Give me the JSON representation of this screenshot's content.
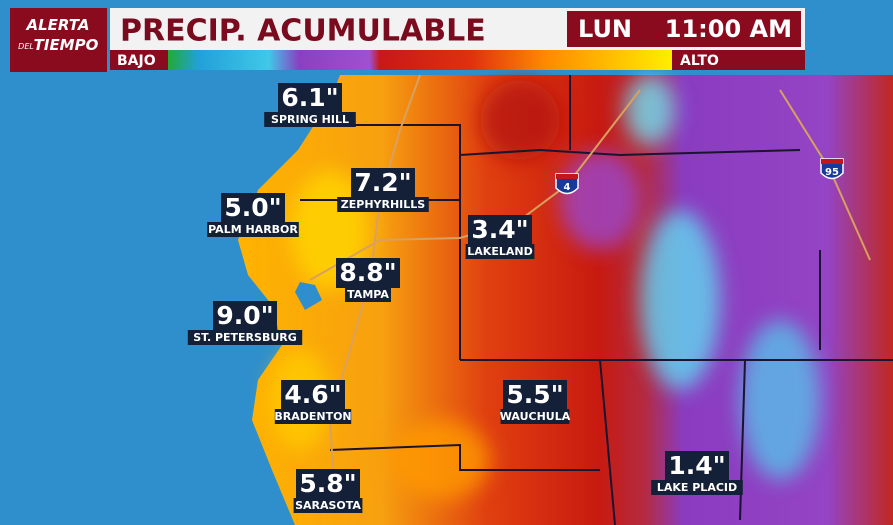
{
  "header": {
    "logo": [
      "ALERTA",
      "DEL",
      "TIEMPO"
    ],
    "title": "PRECIP. ACUMULABLE",
    "day": "LUN",
    "time": "11:00 AM"
  },
  "legend": {
    "low": "BAJO",
    "high": "ALTO"
  },
  "cities": [
    {
      "amount": "6.1\"",
      "name": "SPRING HILL"
    },
    {
      "amount": "7.2\"",
      "name": "ZEPHYRHILLS"
    },
    {
      "amount": "5.0\"",
      "name": "PALM HARBOR"
    },
    {
      "amount": "3.4\"",
      "name": "LAKELAND"
    },
    {
      "amount": "8.8\"",
      "name": "TAMPA"
    },
    {
      "amount": "9.0\"",
      "name": "ST. PETERSBURG"
    },
    {
      "amount": "4.6\"",
      "name": "BRADENTON"
    },
    {
      "amount": "5.5\"",
      "name": "WAUCHULA"
    },
    {
      "amount": "1.4\"",
      "name": "LAKE PLACID"
    },
    {
      "amount": "5.8\"",
      "name": "SARASOTA"
    }
  ],
  "highways": [
    {
      "label": "4"
    },
    {
      "label": "95"
    }
  ]
}
